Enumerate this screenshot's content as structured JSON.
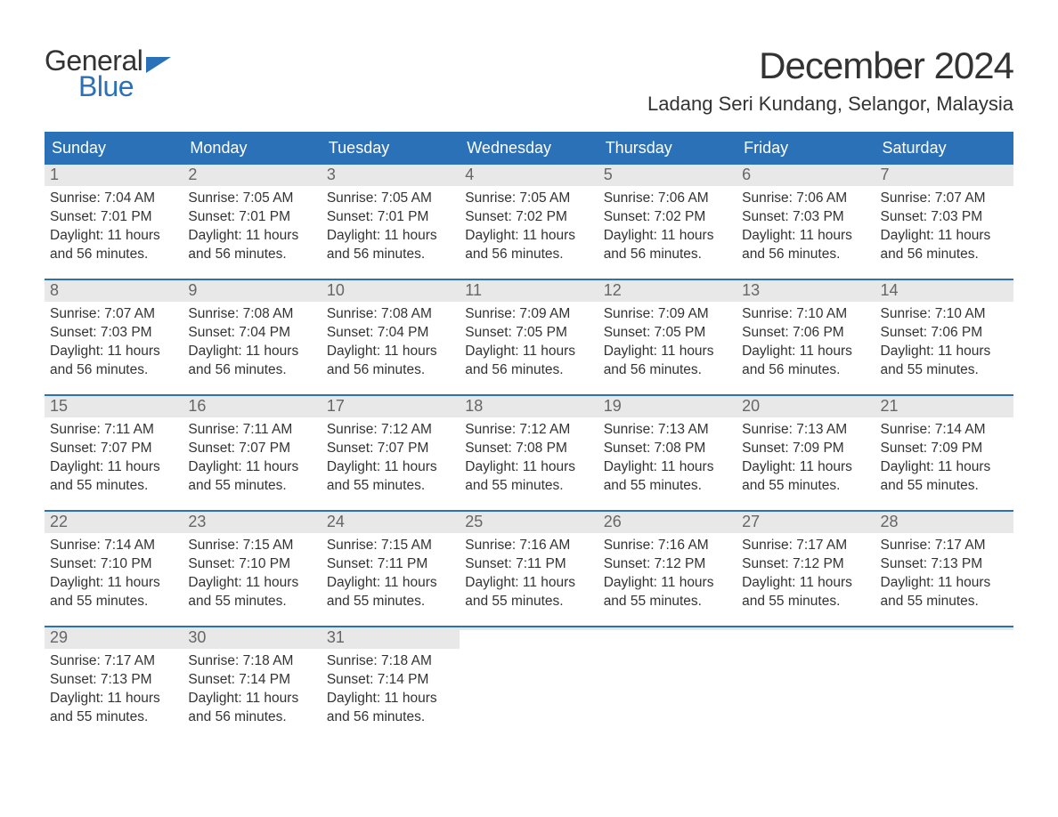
{
  "colors": {
    "accent": "#2a71b8",
    "header_text": "#ffffff",
    "daybar_bg": "#e8e8e8",
    "text": "#333333",
    "daynum": "#666666",
    "page_bg": "#ffffff"
  },
  "logo": {
    "line1": "General",
    "line2": "Blue"
  },
  "title": "December 2024",
  "location": "Ladang Seri Kundang, Selangor, Malaysia",
  "day_names": [
    "Sunday",
    "Monday",
    "Tuesday",
    "Wednesday",
    "Thursday",
    "Friday",
    "Saturday"
  ],
  "weeks": [
    [
      {
        "day": "1",
        "sunrise": "Sunrise: 7:04 AM",
        "sunset": "Sunset: 7:01 PM",
        "d1": "Daylight: 11 hours",
        "d2": "and 56 minutes."
      },
      {
        "day": "2",
        "sunrise": "Sunrise: 7:05 AM",
        "sunset": "Sunset: 7:01 PM",
        "d1": "Daylight: 11 hours",
        "d2": "and 56 minutes."
      },
      {
        "day": "3",
        "sunrise": "Sunrise: 7:05 AM",
        "sunset": "Sunset: 7:01 PM",
        "d1": "Daylight: 11 hours",
        "d2": "and 56 minutes."
      },
      {
        "day": "4",
        "sunrise": "Sunrise: 7:05 AM",
        "sunset": "Sunset: 7:02 PM",
        "d1": "Daylight: 11 hours",
        "d2": "and 56 minutes."
      },
      {
        "day": "5",
        "sunrise": "Sunrise: 7:06 AM",
        "sunset": "Sunset: 7:02 PM",
        "d1": "Daylight: 11 hours",
        "d2": "and 56 minutes."
      },
      {
        "day": "6",
        "sunrise": "Sunrise: 7:06 AM",
        "sunset": "Sunset: 7:03 PM",
        "d1": "Daylight: 11 hours",
        "d2": "and 56 minutes."
      },
      {
        "day": "7",
        "sunrise": "Sunrise: 7:07 AM",
        "sunset": "Sunset: 7:03 PM",
        "d1": "Daylight: 11 hours",
        "d2": "and 56 minutes."
      }
    ],
    [
      {
        "day": "8",
        "sunrise": "Sunrise: 7:07 AM",
        "sunset": "Sunset: 7:03 PM",
        "d1": "Daylight: 11 hours",
        "d2": "and 56 minutes."
      },
      {
        "day": "9",
        "sunrise": "Sunrise: 7:08 AM",
        "sunset": "Sunset: 7:04 PM",
        "d1": "Daylight: 11 hours",
        "d2": "and 56 minutes."
      },
      {
        "day": "10",
        "sunrise": "Sunrise: 7:08 AM",
        "sunset": "Sunset: 7:04 PM",
        "d1": "Daylight: 11 hours",
        "d2": "and 56 minutes."
      },
      {
        "day": "11",
        "sunrise": "Sunrise: 7:09 AM",
        "sunset": "Sunset: 7:05 PM",
        "d1": "Daylight: 11 hours",
        "d2": "and 56 minutes."
      },
      {
        "day": "12",
        "sunrise": "Sunrise: 7:09 AM",
        "sunset": "Sunset: 7:05 PM",
        "d1": "Daylight: 11 hours",
        "d2": "and 56 minutes."
      },
      {
        "day": "13",
        "sunrise": "Sunrise: 7:10 AM",
        "sunset": "Sunset: 7:06 PM",
        "d1": "Daylight: 11 hours",
        "d2": "and 56 minutes."
      },
      {
        "day": "14",
        "sunrise": "Sunrise: 7:10 AM",
        "sunset": "Sunset: 7:06 PM",
        "d1": "Daylight: 11 hours",
        "d2": "and 55 minutes."
      }
    ],
    [
      {
        "day": "15",
        "sunrise": "Sunrise: 7:11 AM",
        "sunset": "Sunset: 7:07 PM",
        "d1": "Daylight: 11 hours",
        "d2": "and 55 minutes."
      },
      {
        "day": "16",
        "sunrise": "Sunrise: 7:11 AM",
        "sunset": "Sunset: 7:07 PM",
        "d1": "Daylight: 11 hours",
        "d2": "and 55 minutes."
      },
      {
        "day": "17",
        "sunrise": "Sunrise: 7:12 AM",
        "sunset": "Sunset: 7:07 PM",
        "d1": "Daylight: 11 hours",
        "d2": "and 55 minutes."
      },
      {
        "day": "18",
        "sunrise": "Sunrise: 7:12 AM",
        "sunset": "Sunset: 7:08 PM",
        "d1": "Daylight: 11 hours",
        "d2": "and 55 minutes."
      },
      {
        "day": "19",
        "sunrise": "Sunrise: 7:13 AM",
        "sunset": "Sunset: 7:08 PM",
        "d1": "Daylight: 11 hours",
        "d2": "and 55 minutes."
      },
      {
        "day": "20",
        "sunrise": "Sunrise: 7:13 AM",
        "sunset": "Sunset: 7:09 PM",
        "d1": "Daylight: 11 hours",
        "d2": "and 55 minutes."
      },
      {
        "day": "21",
        "sunrise": "Sunrise: 7:14 AM",
        "sunset": "Sunset: 7:09 PM",
        "d1": "Daylight: 11 hours",
        "d2": "and 55 minutes."
      }
    ],
    [
      {
        "day": "22",
        "sunrise": "Sunrise: 7:14 AM",
        "sunset": "Sunset: 7:10 PM",
        "d1": "Daylight: 11 hours",
        "d2": "and 55 minutes."
      },
      {
        "day": "23",
        "sunrise": "Sunrise: 7:15 AM",
        "sunset": "Sunset: 7:10 PM",
        "d1": "Daylight: 11 hours",
        "d2": "and 55 minutes."
      },
      {
        "day": "24",
        "sunrise": "Sunrise: 7:15 AM",
        "sunset": "Sunset: 7:11 PM",
        "d1": "Daylight: 11 hours",
        "d2": "and 55 minutes."
      },
      {
        "day": "25",
        "sunrise": "Sunrise: 7:16 AM",
        "sunset": "Sunset: 7:11 PM",
        "d1": "Daylight: 11 hours",
        "d2": "and 55 minutes."
      },
      {
        "day": "26",
        "sunrise": "Sunrise: 7:16 AM",
        "sunset": "Sunset: 7:12 PM",
        "d1": "Daylight: 11 hours",
        "d2": "and 55 minutes."
      },
      {
        "day": "27",
        "sunrise": "Sunrise: 7:17 AM",
        "sunset": "Sunset: 7:12 PM",
        "d1": "Daylight: 11 hours",
        "d2": "and 55 minutes."
      },
      {
        "day": "28",
        "sunrise": "Sunrise: 7:17 AM",
        "sunset": "Sunset: 7:13 PM",
        "d1": "Daylight: 11 hours",
        "d2": "and 55 minutes."
      }
    ],
    [
      {
        "day": "29",
        "sunrise": "Sunrise: 7:17 AM",
        "sunset": "Sunset: 7:13 PM",
        "d1": "Daylight: 11 hours",
        "d2": "and 55 minutes."
      },
      {
        "day": "30",
        "sunrise": "Sunrise: 7:18 AM",
        "sunset": "Sunset: 7:14 PM",
        "d1": "Daylight: 11 hours",
        "d2": "and 56 minutes."
      },
      {
        "day": "31",
        "sunrise": "Sunrise: 7:18 AM",
        "sunset": "Sunset: 7:14 PM",
        "d1": "Daylight: 11 hours",
        "d2": "and 56 minutes."
      },
      {
        "empty": true
      },
      {
        "empty": true
      },
      {
        "empty": true
      },
      {
        "empty": true
      }
    ]
  ]
}
